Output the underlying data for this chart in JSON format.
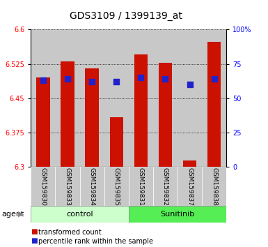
{
  "title": "GDS3109 / 1399139_at",
  "samples": [
    "GSM159830",
    "GSM159833",
    "GSM159834",
    "GSM159835",
    "GSM159831",
    "GSM159832",
    "GSM159837",
    "GSM159838"
  ],
  "bar_values": [
    6.495,
    6.53,
    6.515,
    6.408,
    6.545,
    6.527,
    6.313,
    6.573
  ],
  "percentile_values": [
    63,
    64,
    62,
    62,
    65,
    64,
    60,
    64
  ],
  "ylim_left": [
    6.3,
    6.6
  ],
  "ylim_right": [
    0,
    100
  ],
  "yticks_left": [
    6.3,
    6.375,
    6.45,
    6.525,
    6.6
  ],
  "ytick_labels_left": [
    "6.3",
    "6.375",
    "6.45",
    "6.525",
    "6.6"
  ],
  "yticks_right": [
    0,
    25,
    50,
    75,
    100
  ],
  "ytick_labels_right": [
    "0",
    "25",
    "50",
    "75",
    "100%"
  ],
  "bar_color": "#cc1100",
  "dot_color": "#2222cc",
  "col_bg": "#c8c8c8",
  "control_bg": "#ccffcc",
  "sunitinib_bg": "#55ee55",
  "bar_width": 0.55,
  "dot_size": 28
}
